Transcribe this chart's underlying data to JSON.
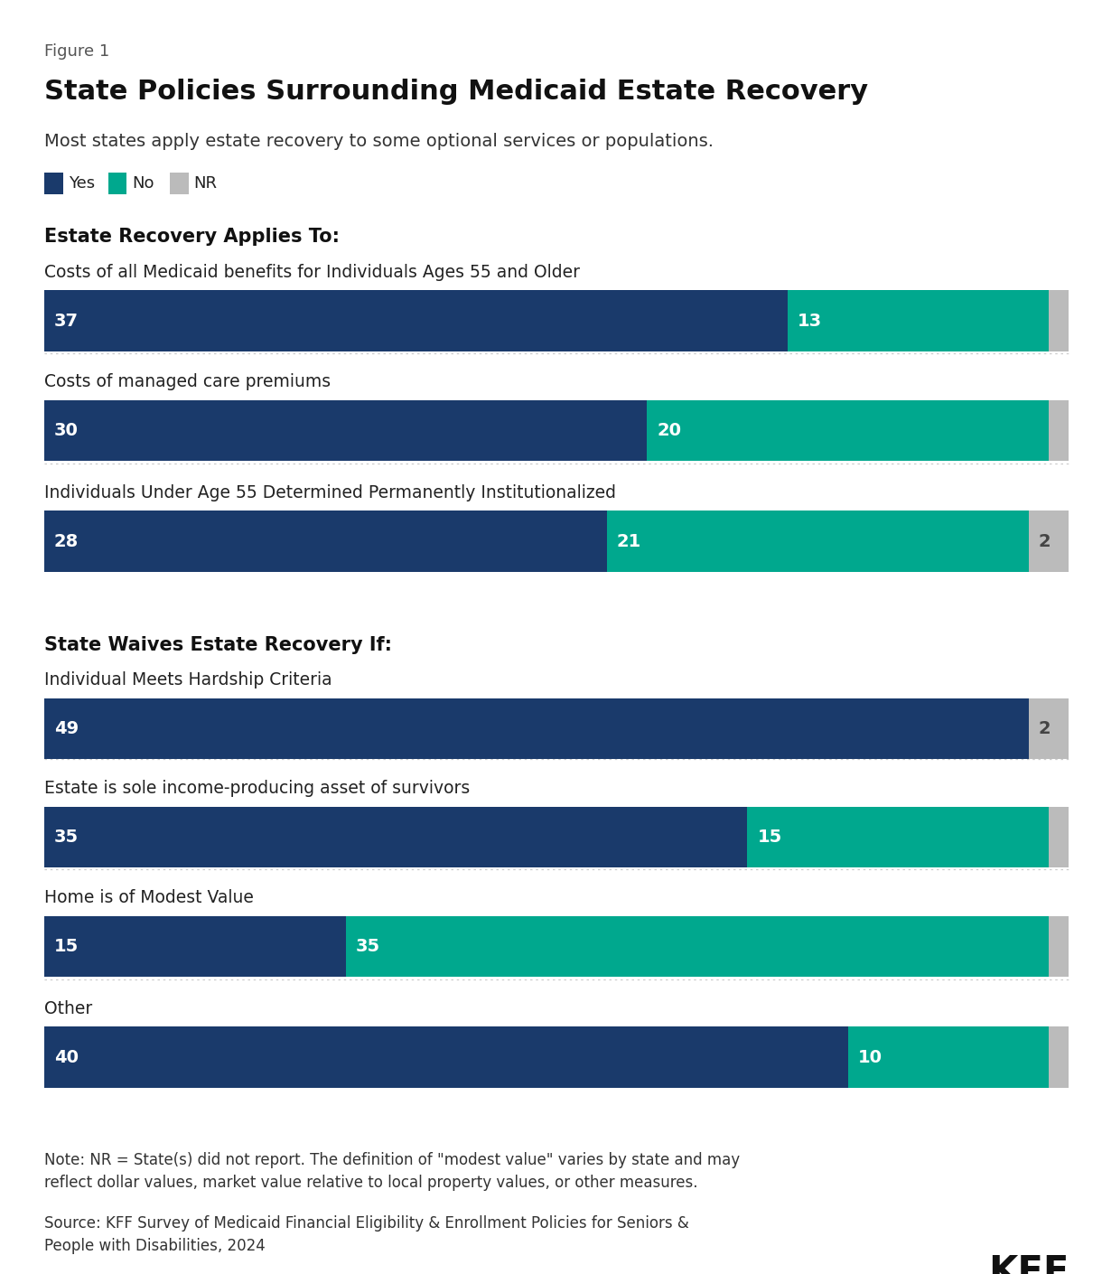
{
  "figure_label": "Figure 1",
  "title": "State Policies Surrounding Medicaid Estate Recovery",
  "subtitle": "Most states apply estate recovery to some optional services or populations.",
  "section1_title": "Estate Recovery Applies To:",
  "section2_title": "State Waives Estate Recovery If:",
  "rows": [
    {
      "label": "Costs of all Medicaid benefits for Individuals Ages 55 and Older",
      "yes": 37,
      "no": 13,
      "nr": 1,
      "section": 1
    },
    {
      "label": "Costs of managed care premiums",
      "yes": 30,
      "no": 20,
      "nr": 1,
      "section": 1
    },
    {
      "label": "Individuals Under Age 55 Determined Permanently Institutionalized",
      "yes": 28,
      "no": 21,
      "nr": 2,
      "section": 1
    },
    {
      "label": "Individual Meets Hardship Criteria",
      "yes": 49,
      "no": 0,
      "nr": 2,
      "section": 2
    },
    {
      "label": "Estate is sole income-producing asset of survivors",
      "yes": 35,
      "no": 15,
      "nr": 1,
      "section": 2
    },
    {
      "label": "Home is of Modest Value",
      "yes": 15,
      "no": 35,
      "nr": 1,
      "section": 2
    },
    {
      "label": "Other",
      "yes": 40,
      "no": 10,
      "nr": 1,
      "section": 2
    }
  ],
  "note": "Note: NR = State(s) did not report. The definition of \"modest value\" varies by state and may\nreflect dollar values, market value relative to local property values, or other measures.",
  "source": "Source: KFF Survey of Medicaid Financial Eligibility & Enrollment Policies for Seniors &\nPeople with Disabilities, 2024",
  "yes_color": "#1a3a6b",
  "no_color": "#00a88e",
  "nr_color": "#bbbbbb",
  "max_val": 51,
  "background_color": "#ffffff"
}
